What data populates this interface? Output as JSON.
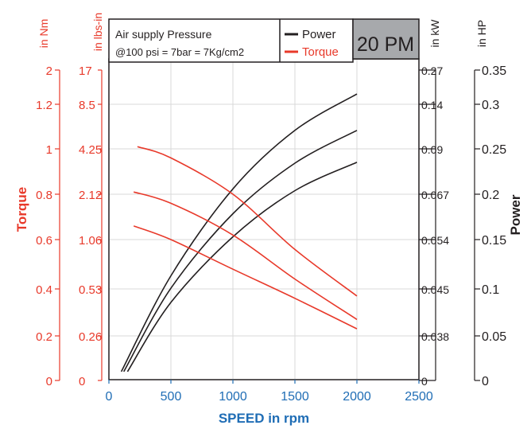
{
  "chart_data": {
    "type": "line",
    "xlabel": "SPEED in rpm",
    "x_ticks": [
      "0",
      "500",
      "1000",
      "1500",
      "2000",
      "2500"
    ],
    "xlim": [
      0,
      2500
    ],
    "ylabel_left": "Torque",
    "ylabel_right": "Power",
    "axes": {
      "nm": {
        "unit": "in Nm",
        "ticks": [
          "2",
          "1.2",
          "1",
          "0.8",
          "0.6",
          "0.4",
          "0.2",
          "0"
        ]
      },
      "lbsin": {
        "unit": "in lbs-in",
        "ticks": [
          "17",
          "8.5",
          "4.25",
          "2.12",
          "1.06",
          "0.53",
          "0.26",
          "0"
        ]
      },
      "kw": {
        "unit": "in kW",
        "ticks": [
          "0.27",
          "0.14",
          "0.09",
          "0.067",
          "0.054",
          "0.045",
          "0.038",
          "0"
        ]
      },
      "hp": {
        "unit": "in HP",
        "ticks": [
          "0.35",
          "0.3",
          "0.25",
          "0.2",
          "0.15",
          "0.1",
          "0.05",
          "0"
        ]
      }
    },
    "legend": {
      "info_line1": "Air supply Pressure",
      "info_line2": "@100 psi = 7bar = 7Kg/cm2",
      "entries": [
        {
          "name": "Power",
          "color": "#231f20"
        },
        {
          "name": "Torque",
          "color": "#e8392a"
        }
      ],
      "model": "20 PM",
      "placement": "top"
    },
    "power_series": [
      {
        "color": "#231f20",
        "x": [
          100,
          500,
          1000,
          1500,
          2000
        ],
        "y_hp": [
          0.01,
          0.118,
          0.216,
          0.282,
          0.323
        ]
      },
      {
        "color": "#231f20",
        "x": [
          120,
          500,
          1000,
          1500,
          2000
        ],
        "y_hp": [
          0.01,
          0.104,
          0.188,
          0.245,
          0.282
        ]
      },
      {
        "color": "#231f20",
        "x": [
          150,
          500,
          1000,
          1500,
          2000
        ],
        "y_hp": [
          0.01,
          0.088,
          0.162,
          0.214,
          0.246
        ]
      }
    ],
    "torque_series": [
      {
        "color": "#e8392a",
        "x": [
          230,
          500,
          1000,
          1500,
          2000
        ],
        "y_grid": [
          1.01,
          0.96,
          0.8,
          0.56,
          0.37
        ]
      },
      {
        "color": "#e8392a",
        "x": [
          200,
          500,
          1000,
          1500,
          2000
        ],
        "y_grid": [
          0.81,
          0.76,
          0.62,
          0.44,
          0.27
        ]
      },
      {
        "color": "#e8392a",
        "x": [
          200,
          500,
          1000,
          1500,
          2000
        ],
        "y_grid": [
          0.66,
          0.6,
          0.48,
          0.36,
          0.23
        ]
      }
    ],
    "colors": {
      "torque": "#e8392a",
      "power": "#231f20",
      "speed_axis": "#1f6db5",
      "model_box": "#a7a9ac"
    }
  }
}
